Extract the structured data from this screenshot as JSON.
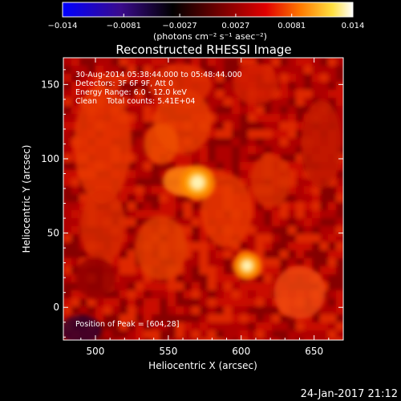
{
  "chart_data": {
    "type": "heatmap",
    "title": "Reconstructed RHESSI Image",
    "xlabel": "Heliocentric X (arcsec)",
    "ylabel": "Heliocentric Y (arcsec)",
    "xlim": [
      478,
      670
    ],
    "ylim": [
      -22,
      168
    ],
    "x_ticks": [
      500,
      550,
      600,
      650
    ],
    "y_ticks": [
      0,
      50,
      100,
      150
    ],
    "colorbar": {
      "range": [
        -0.014,
        0.014
      ],
      "tick_values": [
        -0.014,
        -0.0081,
        -0.0027,
        0.0027,
        0.0081,
        0.014
      ],
      "tick_labels": [
        "−0.014",
        "−0.0081",
        "−0.0027",
        "0.0027",
        "0.0081",
        "0.014"
      ],
      "unit_label": "(photons cm⁻² s⁻¹ asec⁻²)",
      "stops": [
        "#0000ff",
        "#3a0b8c",
        "#000000",
        "#7a0000",
        "#e00000",
        "#ff7a00",
        "#ffe040",
        "#ffffff"
      ]
    },
    "sources": [
      {
        "x": 570,
        "y": 84,
        "peak": 0.0125
      },
      {
        "x": 604,
        "y": 28,
        "peak": 0.0135
      }
    ],
    "annotations": [
      "30-Aug-2014 05:38:44.000 to 05:48:44.000",
      "Detectors: 3F 6F 9F, Att 0",
      "Energy Range: 6.0 - 12.0 keV",
      "Clean    Total counts: 5.41E+04"
    ],
    "peak_label": "Position of Peak = [604,28]"
  },
  "footer": {
    "timestamp": "24-Jan-2017 21:12"
  }
}
